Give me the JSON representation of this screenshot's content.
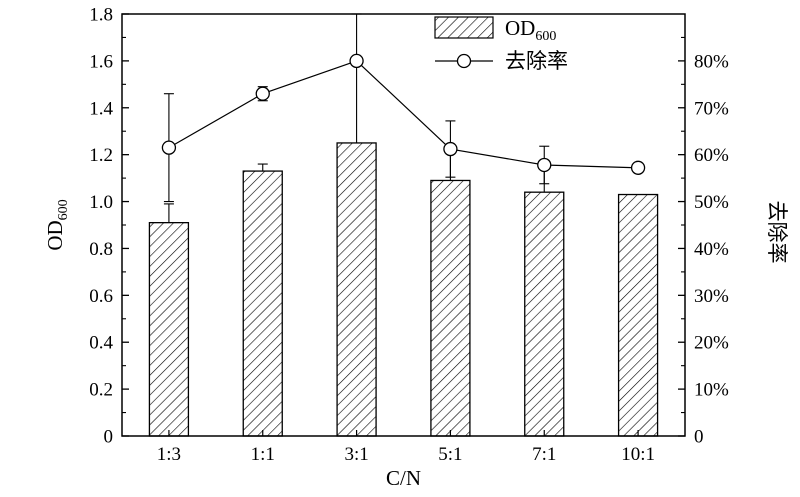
{
  "chart_data": {
    "type": "bar",
    "categories": [
      "1:3",
      "1:1",
      "3:1",
      "5:1",
      "7:1",
      "10:1"
    ],
    "series": [
      {
        "name": "OD600",
        "kind": "bar",
        "axis": "left",
        "values": [
          0.91,
          1.13,
          1.25,
          1.09,
          1.04,
          1.03
        ],
        "errors": [
          0.08,
          0.03,
          0.55,
          0.12,
          0.12,
          0.0
        ]
      },
      {
        "name": "去除率",
        "kind": "line",
        "axis": "right",
        "values": [
          0.615,
          0.73,
          0.8,
          0.612,
          0.578,
          0.572
        ],
        "errors": [
          0.115,
          0.015,
          0.005,
          0.06,
          0.04,
          0.01
        ]
      }
    ],
    "xlabel": "C/N",
    "ylabel": {
      "main": "OD",
      "sub": "600"
    },
    "y2label": "去除率",
    "ylim": [
      0,
      1.8
    ],
    "y2lim": [
      0,
      0.9
    ],
    "yticks": [
      "0",
      "0.2",
      "0.4",
      "0.6",
      "0.8",
      "1.0",
      "1.2",
      "1.4",
      "1.6",
      "1.8"
    ],
    "y2ticks": [
      "0",
      "10%",
      "20%",
      "30%",
      "40%",
      "50%",
      "60%",
      "70%",
      "80%"
    ],
    "legend": {
      "position": "top-right",
      "items": [
        {
          "label": "OD",
          "sub": "600",
          "marker": "hatched-bar"
        },
        {
          "label": "去除率",
          "marker": "line-circle"
        }
      ]
    },
    "grid": false,
    "colors": {
      "stroke": "#000000",
      "background": "#ffffff"
    }
  }
}
